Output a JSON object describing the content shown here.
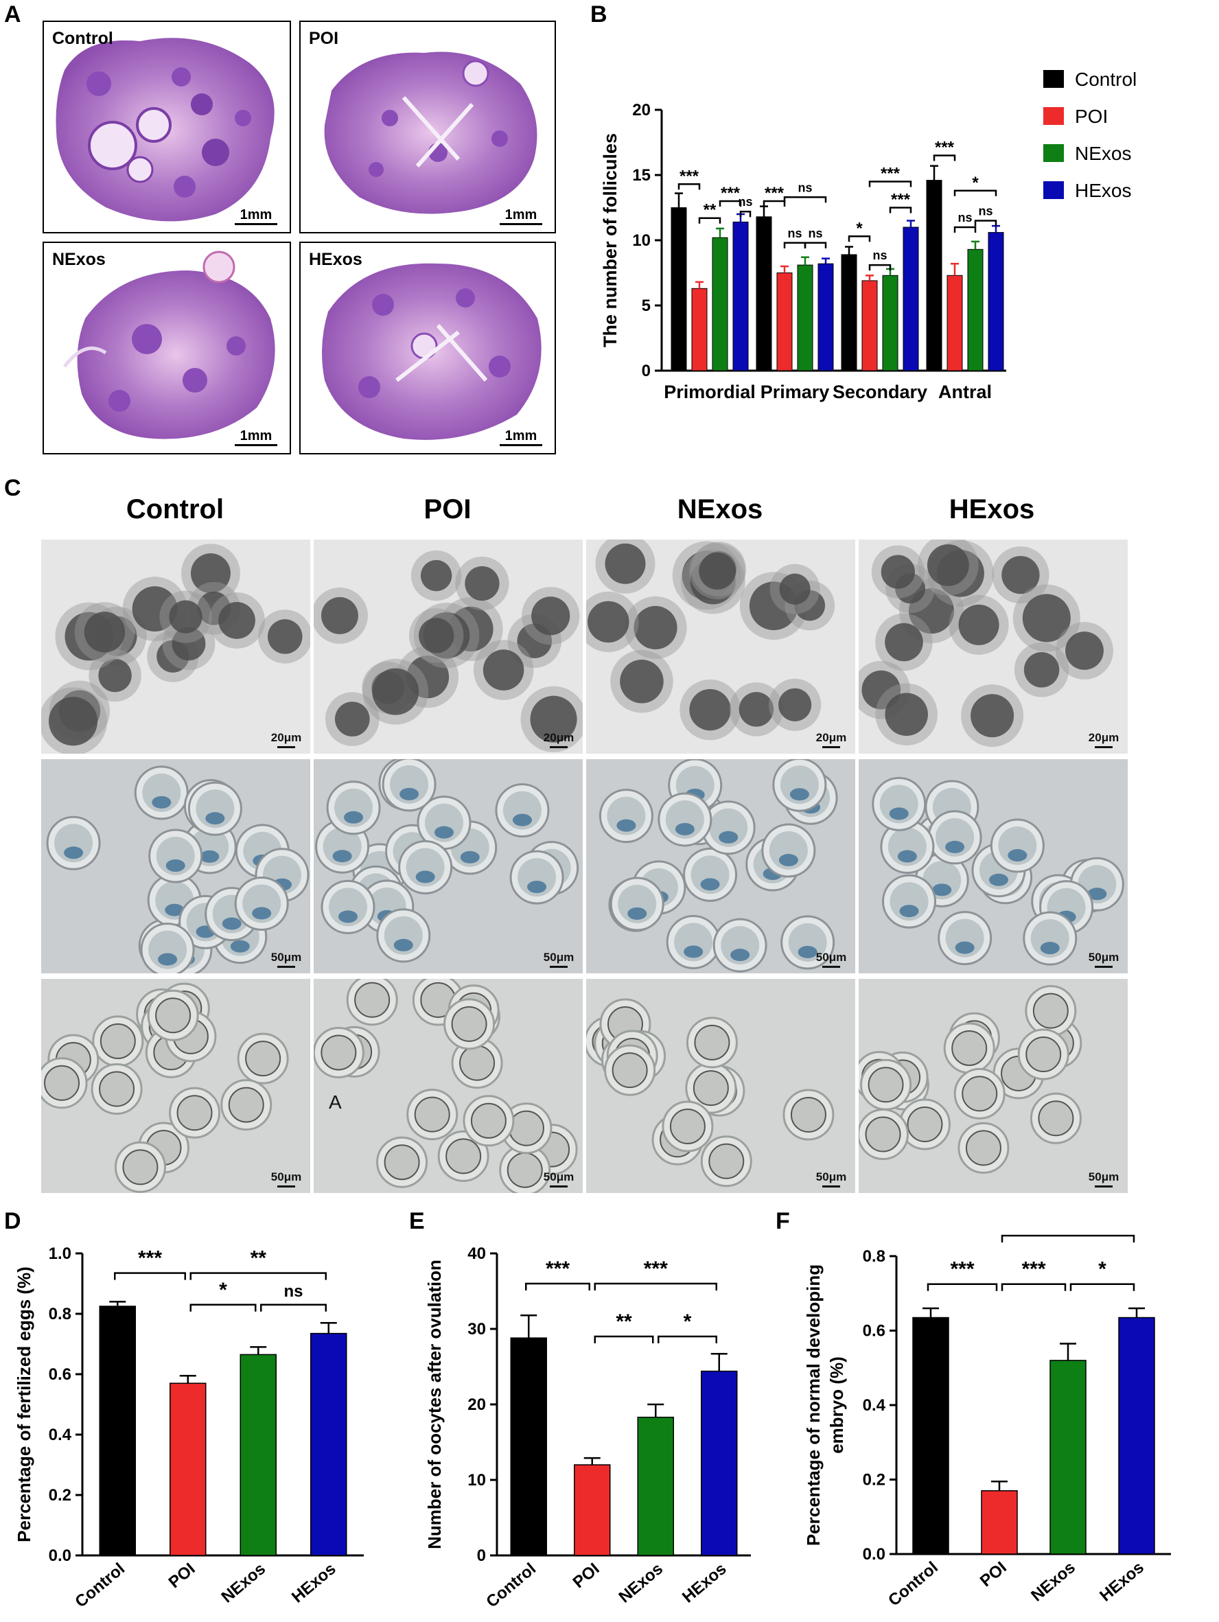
{
  "panel_letters": [
    "A",
    "B",
    "C",
    "D",
    "E",
    "F"
  ],
  "panelA": {
    "items": [
      {
        "label": "Control",
        "scale": "1mm"
      },
      {
        "label": "POI",
        "scale": "1mm"
      },
      {
        "label": "NExos",
        "scale": "1mm"
      },
      {
        "label": "HExos",
        "scale": "1mm"
      }
    ]
  },
  "panelC": {
    "columns": [
      "Control",
      "POI",
      "NExos",
      "HExos"
    ],
    "rows": [
      {
        "scales": [
          "20μm",
          "20μm",
          "20μm",
          "20μm"
        ]
      },
      {
        "scales": [
          "50μm",
          "50μm",
          "50μm",
          "50μm"
        ]
      },
      {
        "scales": [
          "50μm",
          "50μm",
          "50μm",
          "50μm"
        ]
      }
    ],
    "cell_annotation": "A"
  },
  "colors": {
    "Control": "#000000",
    "POI": "#ee2b2b",
    "NExos": "#0e7f14",
    "HExos": "#0a0ab4"
  },
  "chart_data": [
    {
      "id": "B",
      "type": "bar",
      "ylabel": "The number of  follicules",
      "ylim": [
        0,
        20
      ],
      "yticks": [
        "0",
        "5",
        "10",
        "15",
        "20"
      ],
      "categories": [
        "Primordial",
        "Primary",
        "Secondary",
        "Antral"
      ],
      "series": [
        {
          "name": "Control",
          "values": [
            12.5,
            11.8,
            8.9,
            14.6
          ],
          "err": [
            1.1,
            0.8,
            0.6,
            1.1
          ]
        },
        {
          "name": "POI",
          "values": [
            6.3,
            7.5,
            6.9,
            7.3
          ],
          "err": [
            0.5,
            0.5,
            0.4,
            0.9
          ]
        },
        {
          "name": "NExos",
          "values": [
            10.2,
            8.1,
            7.3,
            9.3
          ],
          "err": [
            0.7,
            0.6,
            0.5,
            0.6
          ]
        },
        {
          "name": "HExos",
          "values": [
            11.4,
            8.2,
            11.0,
            10.6
          ],
          "err": [
            0.6,
            0.4,
            0.5,
            0.5
          ]
        }
      ],
      "legend": [
        "Control",
        "POI",
        "NExos",
        "HExos"
      ],
      "sig": [
        "***",
        "**",
        "***",
        "ns",
        "***",
        "ns",
        "ns",
        "ns",
        "*",
        "ns",
        "***",
        "***",
        "***",
        "*",
        "ns",
        "ns"
      ]
    },
    {
      "id": "D",
      "type": "bar",
      "ylabel": "Percentage of  fertilized eggs (%)",
      "ylim": [
        0,
        1.0
      ],
      "yticks": [
        "0.0",
        "0.2",
        "0.4",
        "0.6",
        "0.8",
        "1.0"
      ],
      "categories": [
        "Control",
        "POI",
        "NExos",
        "HExos"
      ],
      "values": [
        0.825,
        0.57,
        0.665,
        0.735
      ],
      "err": [
        0.015,
        0.025,
        0.025,
        0.035
      ],
      "sig": [
        "***",
        "**",
        "*",
        "ns"
      ]
    },
    {
      "id": "E",
      "type": "bar",
      "ylabel": "Number of oocytes after ovulation",
      "ylim": [
        0,
        40
      ],
      "yticks": [
        "0",
        "10",
        "20",
        "30",
        "40"
      ],
      "categories": [
        "Control",
        "POI",
        "NExos",
        "HExos"
      ],
      "values": [
        28.8,
        12.0,
        18.3,
        24.4
      ],
      "err": [
        3.0,
        0.9,
        1.7,
        2.3
      ],
      "sig": [
        "***",
        "***",
        "**",
        "*"
      ]
    },
    {
      "id": "F",
      "type": "bar",
      "ylabel": "Percentage of  normal developing embryo (%)",
      "ylim": [
        0,
        0.8
      ],
      "yticks": [
        "0.0",
        "0.2",
        "0.4",
        "0.6",
        "0.8"
      ],
      "categories": [
        "Control",
        "POI",
        "NExos",
        "HExos"
      ],
      "values": [
        0.635,
        0.17,
        0.52,
        0.635
      ],
      "err": [
        0.025,
        0.025,
        0.045,
        0.025
      ],
      "sig": [
        "***",
        "***",
        "***",
        "*"
      ]
    }
  ]
}
